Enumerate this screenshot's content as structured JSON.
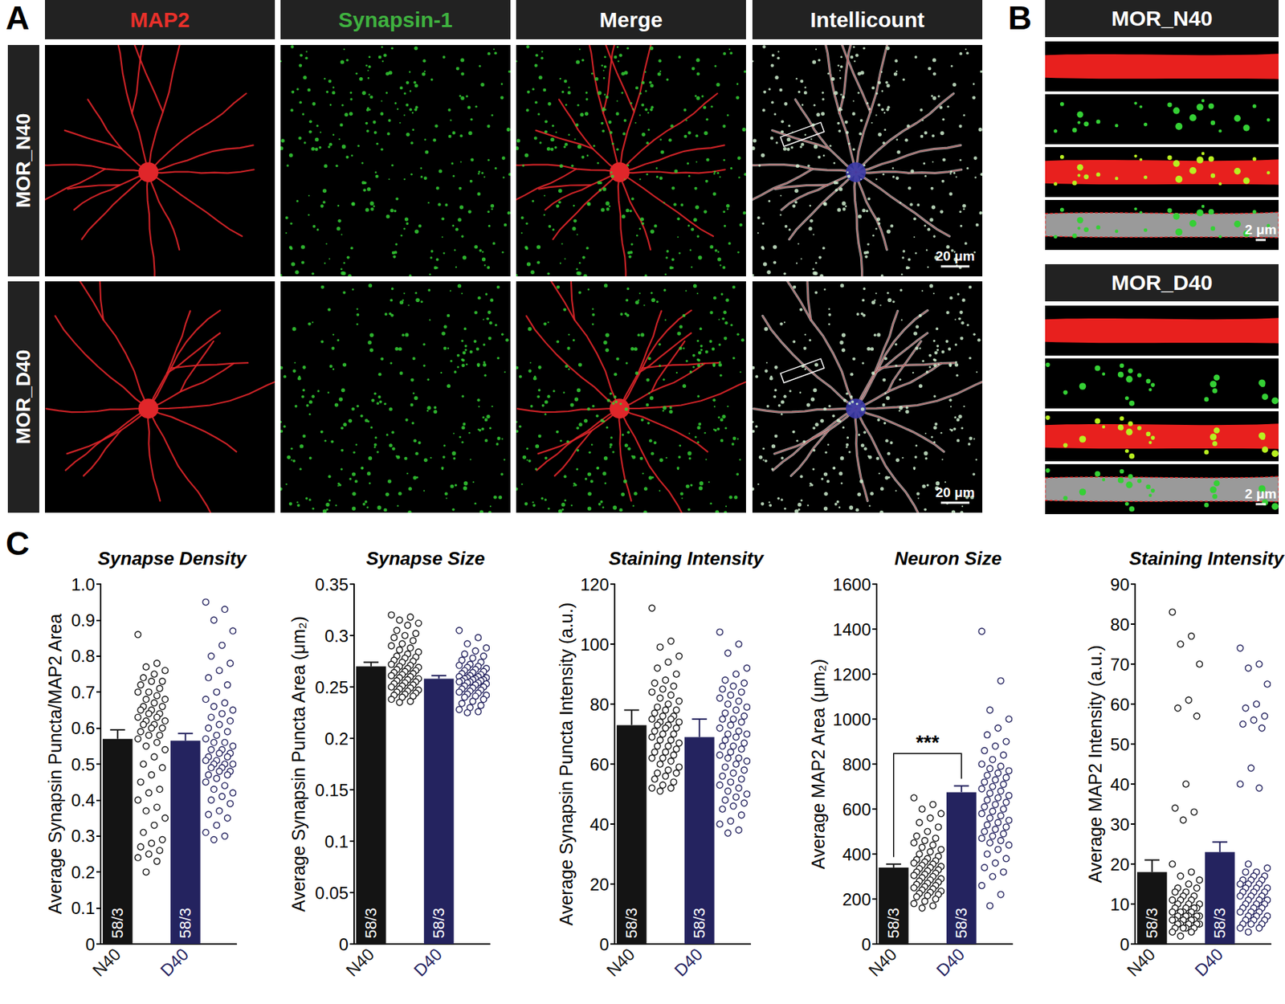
{
  "panel_a": {
    "label": "A",
    "columns": [
      {
        "text": "MAP2",
        "color": "#e8302a"
      },
      {
        "text": "Synapsin-1",
        "color": "#3fb13f"
      },
      {
        "text": "Merge",
        "color": "#ffffff"
      },
      {
        "text": "Intellicount",
        "color": "#ffffff"
      }
    ],
    "rows": [
      "MOR_N40",
      "MOR_D40"
    ],
    "scale_bar": "20 μm"
  },
  "panel_b": {
    "label": "B",
    "rows": [
      "MOR_N40",
      "MOR_D40"
    ],
    "scale_bar": "2 μm"
  },
  "panel_c": {
    "label": "C"
  },
  "chart_data": [
    {
      "type": "bar",
      "title": "Synapse Density",
      "ylabel": "Average Synapsin Puncta/MAP2 Area",
      "categories": [
        "N40",
        "D40"
      ],
      "values": [
        0.57,
        0.565
      ],
      "errors": [
        0.025,
        0.02
      ],
      "colors": [
        "#141414",
        "#24235f"
      ],
      "bar_labels": [
        "58/3",
        "58/3"
      ],
      "ylim": [
        0,
        1
      ],
      "yticks": [
        0,
        0.1,
        0.2,
        0.3,
        0.4,
        0.5,
        0.6,
        0.7,
        0.8,
        0.9,
        {
          "value": 1,
          "label": "1.0"
        }
      ],
      "grid": false,
      "points": [
        [
          0.86,
          0.78,
          0.77,
          0.76,
          0.75,
          0.74,
          0.73,
          0.73,
          0.72,
          0.71,
          0.7,
          0.7,
          0.69,
          0.68,
          0.68,
          0.67,
          0.66,
          0.66,
          0.65,
          0.65,
          0.64,
          0.64,
          0.63,
          0.63,
          0.62,
          0.62,
          0.61,
          0.61,
          0.6,
          0.6,
          0.59,
          0.58,
          0.58,
          0.57,
          0.56,
          0.55,
          0.54,
          0.52,
          0.5,
          0.49,
          0.47,
          0.45,
          0.43,
          0.42,
          0.4,
          0.38,
          0.37,
          0.35,
          0.33,
          0.31,
          0.29,
          0.28,
          0.27,
          0.26,
          0.25,
          0.24,
          0.23,
          0.2
        ],
        [
          0.95,
          0.93,
          0.9,
          0.87,
          0.83,
          0.8,
          0.78,
          0.76,
          0.74,
          0.72,
          0.7,
          0.68,
          0.67,
          0.66,
          0.65,
          0.64,
          0.63,
          0.62,
          0.61,
          0.6,
          0.59,
          0.58,
          0.57,
          0.56,
          0.56,
          0.55,
          0.54,
          0.54,
          0.53,
          0.53,
          0.52,
          0.52,
          0.51,
          0.51,
          0.5,
          0.5,
          0.5,
          0.49,
          0.49,
          0.48,
          0.48,
          0.47,
          0.47,
          0.46,
          0.45,
          0.44,
          0.43,
          0.42,
          0.41,
          0.4,
          0.39,
          0.37,
          0.36,
          0.35,
          0.33,
          0.31,
          0.3,
          0.29
        ]
      ]
    },
    {
      "type": "bar",
      "title": "Synapse Size",
      "ylabel": "Average Synapsin Puncta Area (μm₂)",
      "categories": [
        "N40",
        "D40"
      ],
      "values": [
        0.27,
        0.258
      ],
      "errors": [
        0.004,
        0.003
      ],
      "colors": [
        "#141414",
        "#24235f"
      ],
      "bar_labels": [
        "58/3",
        "58/3"
      ],
      "ylim": [
        0,
        0.35
      ],
      "yticks": [
        0,
        0.05,
        0.1,
        0.15,
        0.2,
        0.25,
        0.3,
        0.35
      ],
      "grid": false,
      "points": [
        [
          0.32,
          0.318,
          0.315,
          0.312,
          0.31,
          0.305,
          0.302,
          0.3,
          0.298,
          0.295,
          0.292,
          0.29,
          0.288,
          0.286,
          0.284,
          0.282,
          0.28,
          0.279,
          0.278,
          0.276,
          0.275,
          0.274,
          0.272,
          0.271,
          0.27,
          0.269,
          0.268,
          0.267,
          0.266,
          0.265,
          0.264,
          0.263,
          0.262,
          0.261,
          0.26,
          0.259,
          0.258,
          0.257,
          0.256,
          0.255,
          0.254,
          0.253,
          0.252,
          0.251,
          0.25,
          0.249,
          0.248,
          0.247,
          0.246,
          0.245,
          0.244,
          0.243,
          0.242,
          0.241,
          0.24,
          0.238,
          0.236,
          0.235
        ],
        [
          0.305,
          0.298,
          0.292,
          0.288,
          0.285,
          0.282,
          0.28,
          0.278,
          0.276,
          0.274,
          0.272,
          0.271,
          0.27,
          0.269,
          0.268,
          0.267,
          0.266,
          0.265,
          0.264,
          0.263,
          0.262,
          0.261,
          0.26,
          0.26,
          0.259,
          0.259,
          0.258,
          0.258,
          0.257,
          0.257,
          0.256,
          0.256,
          0.255,
          0.255,
          0.254,
          0.254,
          0.253,
          0.252,
          0.251,
          0.25,
          0.249,
          0.248,
          0.247,
          0.246,
          0.245,
          0.244,
          0.243,
          0.242,
          0.241,
          0.24,
          0.238,
          0.236,
          0.234,
          0.232,
          0.23,
          0.228,
          0.226,
          0.225
        ]
      ]
    },
    {
      "type": "bar",
      "title": "Staining Intensity",
      "ylabel": "Average Synapsin Puncta Intensity (a.u.)",
      "categories": [
        "N40",
        "D40"
      ],
      "values": [
        73,
        69
      ],
      "errors": [
        5,
        6
      ],
      "colors": [
        "#141414",
        "#24235f"
      ],
      "bar_labels": [
        "58/3",
        "58/3"
      ],
      "ylim": [
        0,
        120
      ],
      "yticks": [
        0,
        20,
        40,
        60,
        80,
        100,
        120
      ],
      "grid": false,
      "points": [
        [
          112,
          101,
          99,
          96,
          94,
          92,
          90,
          88,
          87,
          86,
          85,
          84,
          83,
          82,
          81,
          80,
          79,
          78,
          78,
          77,
          76,
          76,
          75,
          75,
          74,
          74,
          73,
          73,
          72,
          72,
          71,
          70,
          70,
          69,
          68,
          68,
          67,
          66,
          66,
          65,
          64,
          64,
          63,
          62,
          62,
          61,
          60,
          59,
          58,
          57,
          57,
          56,
          55,
          54,
          53,
          52,
          52,
          51
        ],
        [
          104,
          100,
          97,
          92,
          90,
          88,
          87,
          86,
          85,
          84,
          83,
          82,
          81,
          80,
          79,
          78,
          77,
          76,
          75,
          75,
          74,
          73,
          72,
          71,
          70,
          70,
          69,
          68,
          67,
          66,
          66,
          65,
          64,
          63,
          62,
          62,
          61,
          60,
          59,
          58,
          57,
          56,
          55,
          54,
          53,
          52,
          51,
          50,
          49,
          48,
          47,
          46,
          45,
          43,
          41,
          40,
          38,
          37
        ]
      ]
    },
    {
      "type": "bar",
      "title": "Neuron Size",
      "ylabel": "Average MAP2 Area (μm₂)",
      "categories": [
        "N40",
        "D40"
      ],
      "values": [
        340,
        675
      ],
      "errors": [
        15,
        28
      ],
      "colors": [
        "#141414",
        "#24235f"
      ],
      "bar_labels": [
        "58/3",
        "58/3"
      ],
      "ylim": [
        0,
        1600
      ],
      "yticks": [
        0,
        200,
        400,
        600,
        800,
        1000,
        1200,
        1400,
        1600
      ],
      "grid": false,
      "significance": [
        {
          "label": "***",
          "between": [
            "N40",
            "D40"
          ]
        }
      ],
      "points": [
        [
          650,
          620,
          600,
          580,
          560,
          540,
          520,
          500,
          480,
          470,
          460,
          450,
          440,
          430,
          420,
          410,
          400,
          390,
          380,
          375,
          370,
          365,
          360,
          355,
          350,
          345,
          340,
          335,
          330,
          325,
          320,
          315,
          310,
          305,
          300,
          295,
          290,
          285,
          280,
          275,
          270,
          265,
          260,
          255,
          250,
          245,
          240,
          235,
          230,
          225,
          220,
          215,
          210,
          200,
          190,
          180,
          170,
          160
        ],
        [
          1390,
          1170,
          1040,
          1000,
          960,
          930,
          900,
          880,
          860,
          840,
          820,
          800,
          790,
          780,
          770,
          760,
          750,
          740,
          730,
          720,
          710,
          700,
          690,
          680,
          670,
          660,
          650,
          640,
          630,
          620,
          610,
          600,
          590,
          580,
          570,
          560,
          550,
          540,
          530,
          520,
          510,
          500,
          490,
          480,
          470,
          460,
          450,
          440,
          420,
          400,
          380,
          360,
          340,
          320,
          300,
          260,
          220,
          170
        ]
      ]
    },
    {
      "type": "bar",
      "title": "Staining Intensity",
      "ylabel": "Average MAP2 Intensity (a.u.)",
      "categories": [
        "N40",
        "D40"
      ],
      "values": [
        18,
        23
      ],
      "errors": [
        3,
        2.5
      ],
      "colors": [
        "#141414",
        "#24235f"
      ],
      "bar_labels": [
        "58/3",
        "58/3"
      ],
      "ylim": [
        0,
        90
      ],
      "yticks": [
        0,
        10,
        20,
        30,
        40,
        50,
        60,
        70,
        80,
        90
      ],
      "grid": false,
      "points": [
        [
          83,
          77,
          75,
          70,
          61,
          59,
          57,
          40,
          34,
          33,
          31,
          20,
          18,
          17,
          16,
          15,
          14,
          14,
          13,
          13,
          12,
          12,
          11,
          11,
          11,
          10,
          10,
          10,
          9,
          9,
          9,
          9,
          8,
          8,
          8,
          8,
          7,
          7,
          7,
          7,
          7,
          6,
          6,
          6,
          6,
          6,
          5,
          5,
          5,
          5,
          5,
          4,
          4,
          4,
          4,
          3,
          3,
          2
        ],
        [
          74,
          70,
          69,
          65,
          60,
          59,
          57,
          56,
          55,
          54,
          44,
          40,
          39,
          20,
          19,
          18,
          18,
          17,
          17,
          16,
          16,
          16,
          15,
          15,
          15,
          14,
          14,
          14,
          13,
          13,
          13,
          12,
          12,
          12,
          11,
          11,
          11,
          10,
          10,
          10,
          9,
          9,
          9,
          8,
          8,
          8,
          7,
          7,
          7,
          6,
          6,
          6,
          5,
          5,
          5,
          4,
          4,
          3
        ]
      ]
    }
  ]
}
